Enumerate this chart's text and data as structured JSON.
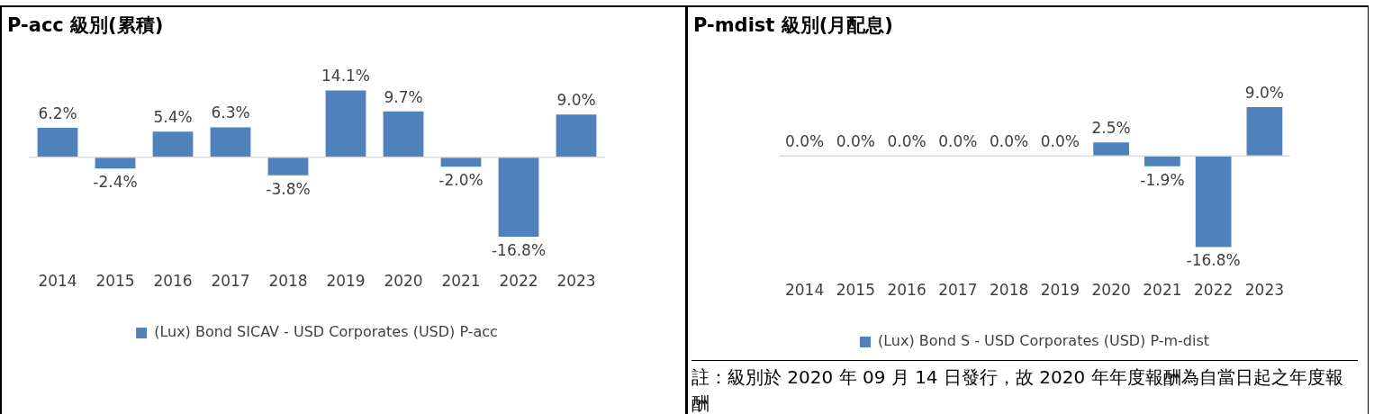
{
  "chart_data": [
    {
      "type": "bar",
      "title": "P-acc 級別(累積)",
      "categories": [
        "2014",
        "2015",
        "2016",
        "2017",
        "2018",
        "2019",
        "2020",
        "2021",
        "2022",
        "2023"
      ],
      "legend": "bottom",
      "grid": false,
      "series": [
        {
          "name": "(Lux) Bond SICAV - USD Corporates (USD) P-acc",
          "color": "#4f81bd",
          "values": [
            6.2,
            -2.4,
            5.4,
            6.3,
            -3.8,
            14.1,
            9.7,
            -2.0,
            -16.8,
            9.0
          ],
          "value_labels": [
            "6.2%",
            "-2.4%",
            "5.4%",
            "6.3%",
            "-3.8%",
            "14.1%",
            "9.7%",
            "-2.0%",
            "-16.8%",
            "9.0%"
          ]
        }
      ]
    },
    {
      "type": "bar",
      "title": "P-mdist 級別(月配息)",
      "categories": [
        "2014",
        "2015",
        "2016",
        "2017",
        "2018",
        "2019",
        "2020",
        "2021",
        "2022",
        "2023"
      ],
      "legend": "bottom",
      "grid": false,
      "series": [
        {
          "name": "(Lux) Bond S - USD Corporates (USD) P-m-dist",
          "color": "#4f81bd",
          "values": [
            0,
            0,
            0,
            0,
            0,
            0,
            2.5,
            -1.9,
            -16.8,
            9.0
          ],
          "value_labels": [
            "0.0%",
            "0.0%",
            "0.0%",
            "0.0%",
            "0.0%",
            "0.0%",
            "2.5%",
            "-1.9%",
            "-16.8%",
            "9.0%"
          ]
        }
      ],
      "annotations": [
        "註：級別於 2020 年 09 月 14 日發行，故 2020 年年度報酬為自當日起之年度報酬"
      ]
    }
  ]
}
